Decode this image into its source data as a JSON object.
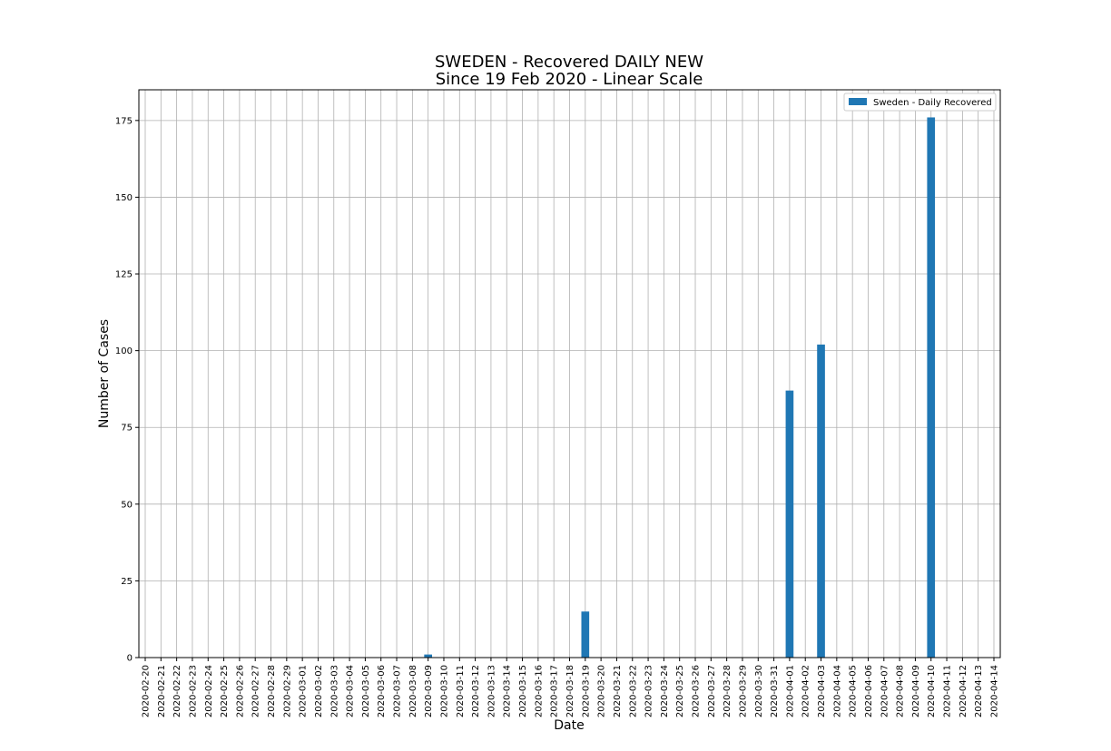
{
  "chart_data": {
    "type": "bar",
    "title": "SWEDEN - Recovered DAILY NEW",
    "subtitle": "Since 19 Feb 2020 - Linear Scale",
    "xlabel": "Date",
    "ylabel": "Number of Cases",
    "ylim": [
      0,
      185
    ],
    "yticks": [
      0,
      25,
      50,
      75,
      100,
      125,
      150,
      175
    ],
    "grid": true,
    "legend_position": "top-right",
    "bar_color": "#1f77b4",
    "categories": [
      "2020-02-20",
      "2020-02-21",
      "2020-02-22",
      "2020-02-23",
      "2020-02-24",
      "2020-02-25",
      "2020-02-26",
      "2020-02-27",
      "2020-02-28",
      "2020-02-29",
      "2020-03-01",
      "2020-03-02",
      "2020-03-03",
      "2020-03-04",
      "2020-03-05",
      "2020-03-06",
      "2020-03-07",
      "2020-03-08",
      "2020-03-09",
      "2020-03-10",
      "2020-03-11",
      "2020-03-12",
      "2020-03-13",
      "2020-03-14",
      "2020-03-15",
      "2020-03-16",
      "2020-03-17",
      "2020-03-18",
      "2020-03-19",
      "2020-03-20",
      "2020-03-21",
      "2020-03-22",
      "2020-03-23",
      "2020-03-24",
      "2020-03-25",
      "2020-03-26",
      "2020-03-27",
      "2020-03-28",
      "2020-03-29",
      "2020-03-30",
      "2020-03-31",
      "2020-04-01",
      "2020-04-02",
      "2020-04-03",
      "2020-04-04",
      "2020-04-05",
      "2020-04-06",
      "2020-04-07",
      "2020-04-08",
      "2020-04-09",
      "2020-04-10",
      "2020-04-11",
      "2020-04-12",
      "2020-04-13",
      "2020-04-14"
    ],
    "series": [
      {
        "name": "Sweden - Daily Recovered",
        "values": [
          0,
          0,
          0,
          0,
          0,
          0,
          0,
          0,
          0,
          0,
          0,
          0,
          0,
          0,
          0,
          0,
          0,
          0,
          1,
          0,
          0,
          0,
          0,
          0,
          0,
          0,
          0,
          0,
          15,
          0,
          0,
          0,
          0,
          0,
          0,
          0,
          0,
          0,
          0,
          0,
          0,
          87,
          0,
          102,
          0,
          0,
          0,
          0,
          0,
          0,
          176,
          0,
          0,
          0,
          0
        ]
      }
    ]
  }
}
